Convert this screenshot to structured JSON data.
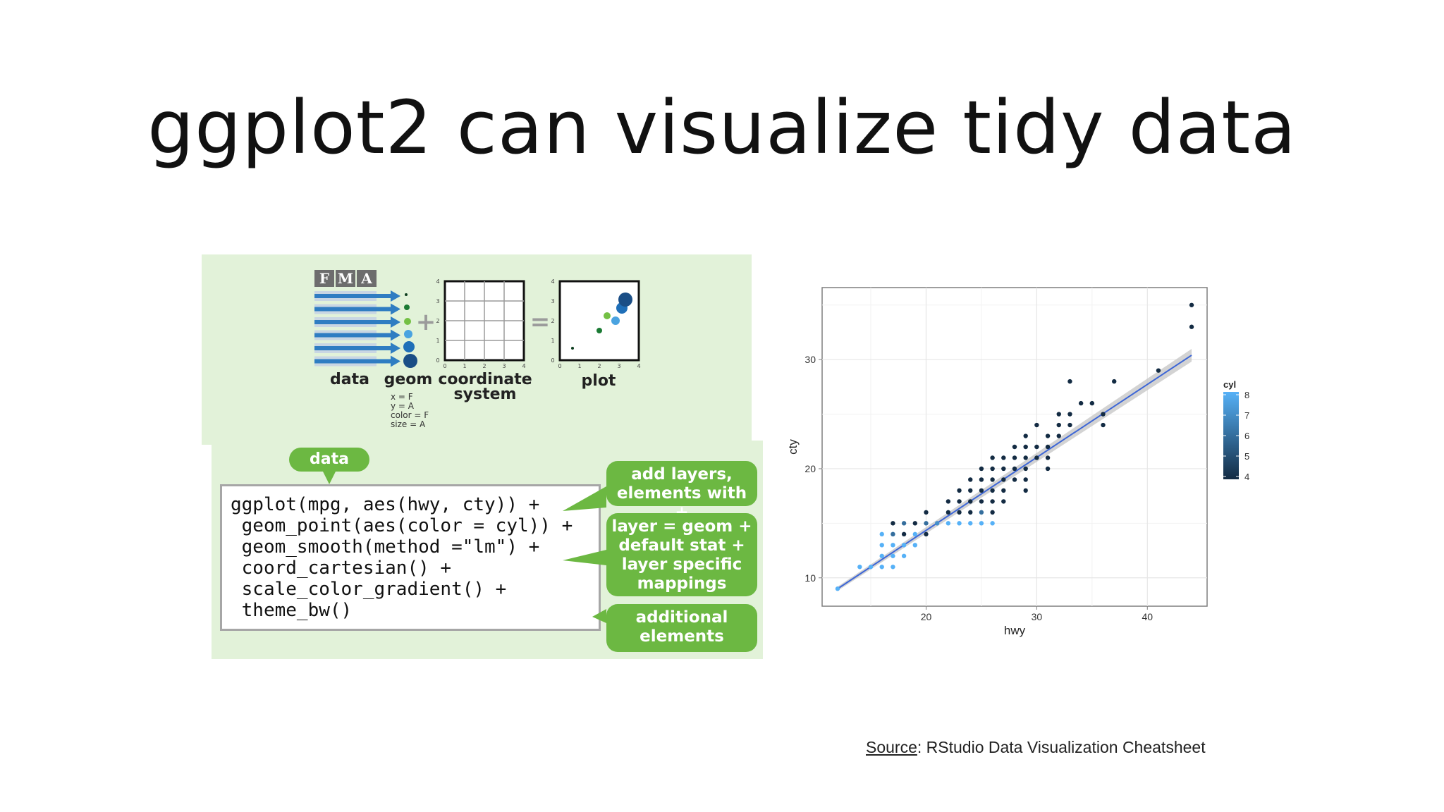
{
  "slide": {
    "title": "ggplot2 can visualize tidy data",
    "source_label": "Source",
    "source_text": ": RStudio Data Visualization Cheatsheet"
  },
  "cheatsheet": {
    "table_headers": [
      "F",
      "M",
      "A"
    ],
    "component_labels": {
      "data": "data",
      "geom": "geom",
      "coord": [
        "coordinate",
        "system"
      ],
      "plot": "plot"
    },
    "aes_mappings": [
      "x = F",
      "y = A",
      "color = F",
      "size = A"
    ],
    "mini_axis_ticks": [
      "0",
      "1",
      "2",
      "3",
      "4"
    ],
    "operators": {
      "plus": "+",
      "equals": "="
    },
    "data_bubble": "data",
    "code_lines": [
      "ggplot(mpg, aes(hwy, cty)) +",
      " geom_point(aes(color = cyl)) +",
      " geom_smooth(method =\"lm\") +",
      " coord_cartesian() +",
      " scale_color_gradient() +",
      " theme_bw()"
    ],
    "notes": [
      [
        "add layers,",
        "elements with +"
      ],
      [
        "layer = geom +",
        "default stat +",
        "layer specific",
        "mappings"
      ],
      [
        "additional",
        "elements"
      ]
    ],
    "colors": {
      "panel": "#e2f2d9",
      "green": "#6cb842",
      "dark_blue": "#1f5b93"
    }
  },
  "chart_data": {
    "type": "scatter",
    "title": "",
    "xlabel": "hwy",
    "ylabel": "cty",
    "xlim": [
      10.6,
      45.4
    ],
    "ylim": [
      7.4,
      36.6
    ],
    "xticks": [
      20,
      30,
      40
    ],
    "yticks": [
      10,
      20,
      30
    ],
    "grid": true,
    "legend": {
      "title": "cyl",
      "position": "right",
      "ticks": [
        8,
        7,
        6,
        5,
        4
      ],
      "colors": [
        "#56b1f7",
        "#132b43"
      ]
    },
    "points": [
      [
        12,
        9,
        8
      ],
      [
        14,
        11,
        8
      ],
      [
        15,
        11,
        8
      ],
      [
        16,
        11,
        8
      ],
      [
        16,
        12,
        8
      ],
      [
        16,
        13,
        8
      ],
      [
        17,
        11,
        8
      ],
      [
        17,
        12,
        8
      ],
      [
        17,
        13,
        8
      ],
      [
        17,
        14,
        8
      ],
      [
        18,
        12,
        8
      ],
      [
        18,
        13,
        8
      ],
      [
        16,
        14,
        8
      ],
      [
        19,
        13,
        8
      ],
      [
        19,
        14,
        8
      ],
      [
        17,
        15,
        4
      ],
      [
        17,
        14,
        6
      ],
      [
        18,
        14,
        4
      ],
      [
        18,
        15,
        6
      ],
      [
        19,
        15,
        4
      ],
      [
        20,
        14,
        4
      ],
      [
        20,
        15,
        6
      ],
      [
        20,
        16,
        4
      ],
      [
        21,
        15,
        7
      ],
      [
        22,
        15,
        8
      ],
      [
        22,
        16,
        4
      ],
      [
        22,
        17,
        4
      ],
      [
        23,
        15,
        8
      ],
      [
        23,
        16,
        4
      ],
      [
        23,
        17,
        4
      ],
      [
        23,
        18,
        4
      ],
      [
        24,
        15,
        8
      ],
      [
        24,
        16,
        4
      ],
      [
        24,
        17,
        4
      ],
      [
        24,
        18,
        4
      ],
      [
        24,
        19,
        4
      ],
      [
        25,
        15,
        8
      ],
      [
        25,
        16,
        6
      ],
      [
        25,
        17,
        4
      ],
      [
        25,
        18,
        4
      ],
      [
        25,
        19,
        4
      ],
      [
        25,
        20,
        4
      ],
      [
        26,
        15,
        8
      ],
      [
        26,
        16,
        4
      ],
      [
        26,
        17,
        4
      ],
      [
        26,
        18,
        4
      ],
      [
        26,
        19,
        4
      ],
      [
        26,
        20,
        4
      ],
      [
        26,
        21,
        4
      ],
      [
        27,
        17,
        4
      ],
      [
        27,
        18,
        4
      ],
      [
        27,
        19,
        4
      ],
      [
        27,
        20,
        4
      ],
      [
        27,
        21,
        4
      ],
      [
        28,
        19,
        4
      ],
      [
        28,
        20,
        4
      ],
      [
        28,
        21,
        4
      ],
      [
        28,
        22,
        4
      ],
      [
        29,
        18,
        4
      ],
      [
        29,
        19,
        4
      ],
      [
        29,
        20,
        4
      ],
      [
        29,
        21,
        4
      ],
      [
        29,
        22,
        4
      ],
      [
        29,
        23,
        4
      ],
      [
        30,
        21,
        4
      ],
      [
        30,
        22,
        4
      ],
      [
        30,
        24,
        4
      ],
      [
        31,
        21,
        4
      ],
      [
        31,
        22,
        4
      ],
      [
        31,
        23,
        4
      ],
      [
        31,
        20,
        4
      ],
      [
        32,
        23,
        4
      ],
      [
        32,
        24,
        4
      ],
      [
        32,
        25,
        4
      ],
      [
        33,
        24,
        4
      ],
      [
        33,
        25,
        4
      ],
      [
        33,
        28,
        4
      ],
      [
        34,
        26,
        4
      ],
      [
        35,
        26,
        4
      ],
      [
        36,
        24,
        4
      ],
      [
        36,
        25,
        4
      ],
      [
        37,
        28,
        4
      ],
      [
        41,
        29,
        4
      ],
      [
        44,
        33,
        4
      ],
      [
        44,
        35,
        4
      ]
    ],
    "smooth_line": {
      "x": [
        12,
        44
      ],
      "y": [
        9.0,
        30.4
      ]
    }
  }
}
